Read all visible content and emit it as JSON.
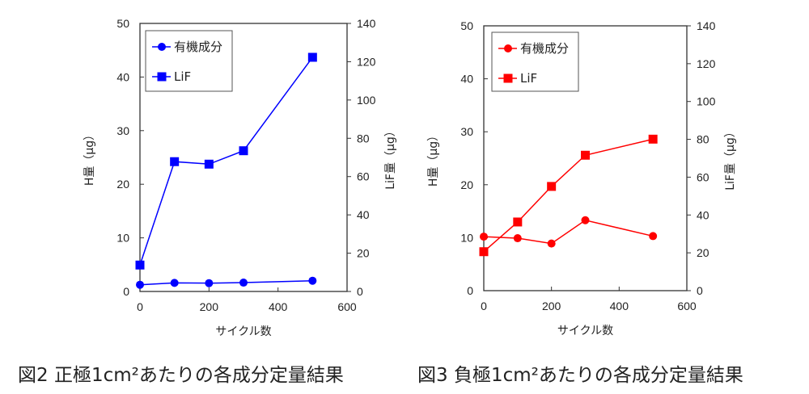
{
  "chart_data": [
    {
      "type": "line",
      "caption": "図2 正極1cm²あたりの各成分定量結果",
      "xlabel": "サイクル数",
      "ylabel": "H量（μg）",
      "y2label": "LiF量（μg）",
      "xlim": [
        0,
        600
      ],
      "xticks": [
        0,
        200,
        400,
        600
      ],
      "ylim": [
        0,
        50
      ],
      "yticks": [
        0,
        10,
        20,
        30,
        40,
        50
      ],
      "y2lim": [
        0,
        140
      ],
      "y2ticks": [
        0,
        20,
        40,
        60,
        80,
        100,
        120,
        140
      ],
      "legend_position": "top-left",
      "color": "#0000ff",
      "series": [
        {
          "name": "有機成分",
          "marker": "circle",
          "axis": "left",
          "x": [
            0,
            100,
            200,
            300,
            500
          ],
          "values": [
            1.25,
            1.6,
            1.55,
            1.65,
            2.0
          ]
        },
        {
          "name": "LiF",
          "marker": "square",
          "axis": "right",
          "x": [
            0,
            100,
            200,
            300,
            500
          ],
          "values": [
            13.8,
            67.8,
            66.5,
            73.5,
            122.3
          ]
        }
      ]
    },
    {
      "type": "line",
      "caption": "図3 負極1cm²あたりの各成分定量結果",
      "xlabel": "サイクル数",
      "ylabel": "H量（μg）",
      "y2label": "LiF量（μg）",
      "xlim": [
        0,
        600
      ],
      "xticks": [
        0,
        200,
        400,
        600
      ],
      "ylim": [
        0,
        50
      ],
      "yticks": [
        0,
        10,
        20,
        30,
        40,
        50
      ],
      "y2lim": [
        0,
        140
      ],
      "y2ticks": [
        0,
        20,
        40,
        60,
        80,
        100,
        120,
        140
      ],
      "legend_position": "top-left",
      "color": "#ff0000",
      "series": [
        {
          "name": "有機成分",
          "marker": "circle",
          "axis": "left",
          "x": [
            0,
            100,
            200,
            300,
            500
          ],
          "values": [
            10.2,
            9.9,
            8.9,
            13.3,
            10.3
          ]
        },
        {
          "name": "LiF",
          "marker": "square",
          "axis": "right",
          "x": [
            0,
            100,
            200,
            300,
            500
          ],
          "values": [
            20.6,
            36.3,
            55.1,
            71.6,
            80.1
          ]
        }
      ]
    }
  ]
}
